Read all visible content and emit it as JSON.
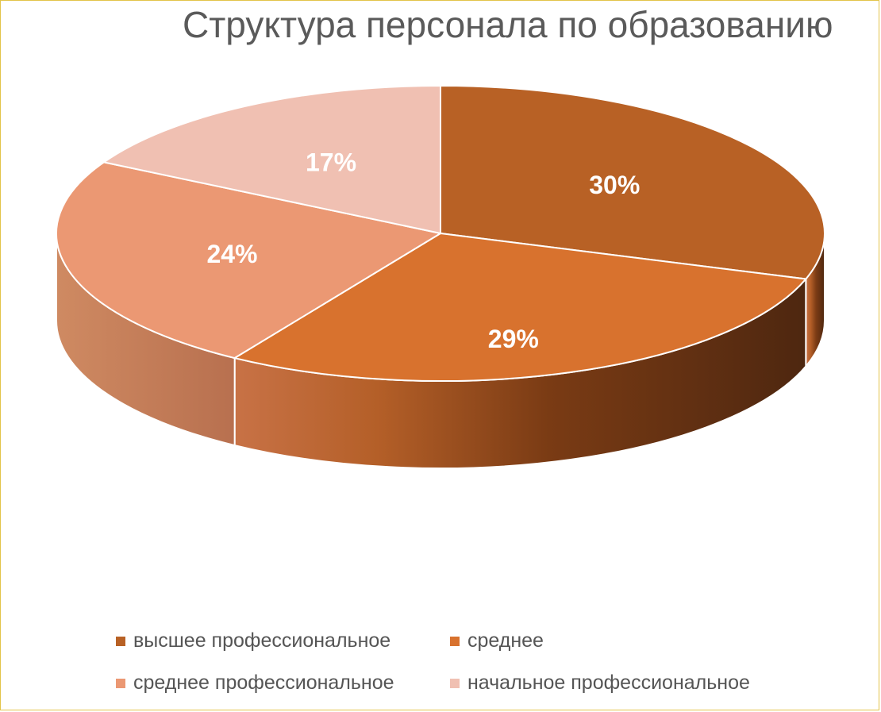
{
  "chart_data": {
    "type": "pie",
    "title": "Структура персонала по образованию",
    "slices": [
      {
        "name": "высшее профессиональное",
        "value": 30,
        "label": "30%",
        "color": "#b86125"
      },
      {
        "name": "среднее",
        "value": 29,
        "label": "29%",
        "color": "#d8722e"
      },
      {
        "name": "среднее профессиональное",
        "value": 24,
        "label": "24%",
        "color": "#eb9873"
      },
      {
        "name": "начальное профессиональное",
        "value": 17,
        "label": "17%",
        "color": "#f0c0b2"
      }
    ],
    "legend_position": "bottom",
    "style": "3d"
  }
}
